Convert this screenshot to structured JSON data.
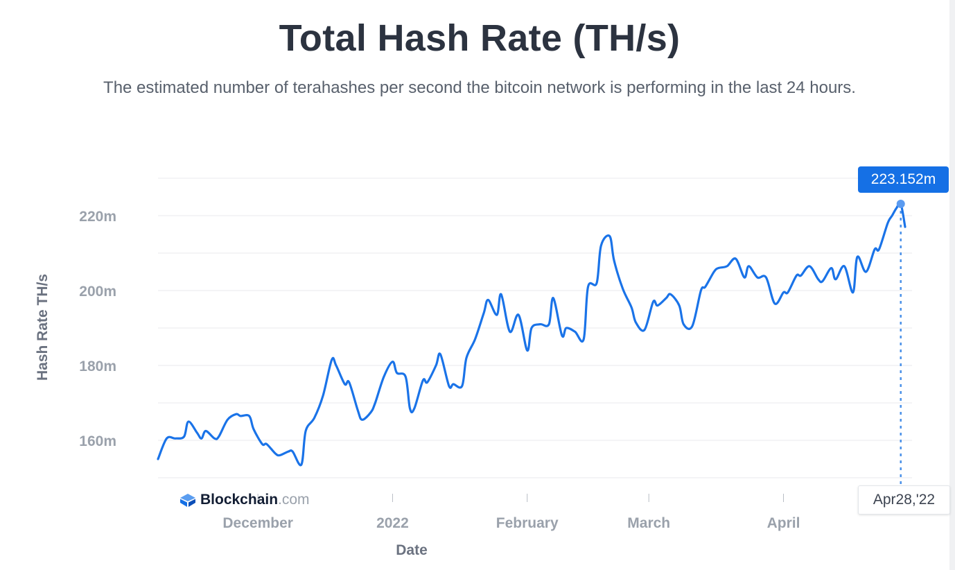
{
  "page": {
    "title": "Total Hash Rate (TH/s)",
    "subtitle": "The estimated number of terahashes per second the bitcoin network is performing in the last 24 hours."
  },
  "brand": {
    "name": "Blockchain",
    "tld": ".com",
    "icon": "blockchain-logo-icon",
    "color": "#1570e5"
  },
  "tooltip": {
    "value": "223.152m",
    "date": "Apr28,'22"
  },
  "colors": {
    "line": "#1a73e8",
    "tooltip": "#1570e5",
    "grid": "#e8eaee"
  },
  "chart_data": {
    "type": "line",
    "title": "Total Hash Rate (TH/s)",
    "ylabel": "Hash Rate TH/s",
    "xlabel": "Date",
    "ylim": [
      150,
      230
    ],
    "yticks": [
      160,
      180,
      200,
      220
    ],
    "ytick_labels": [
      "160m",
      "180m",
      "200m",
      "220m"
    ],
    "xticks": [
      {
        "date": "2021-12-01",
        "label": "December"
      },
      {
        "date": "2022-01-01",
        "label": "2022"
      },
      {
        "date": "2022-02-01",
        "label": "February"
      },
      {
        "date": "2022-03-01",
        "label": "March"
      },
      {
        "date": "2022-04-01",
        "label": "April"
      }
    ],
    "grid": true,
    "series": [
      {
        "x": [
          "2021-11-08",
          "2021-11-10",
          "2021-11-12",
          "2021-11-14",
          "2021-11-15",
          "2021-11-17",
          "2021-11-18",
          "2021-11-19",
          "2021-11-21",
          "2021-11-22",
          "2021-11-24",
          "2021-11-26",
          "2021-11-27",
          "2021-11-29",
          "2021-11-30",
          "2021-12-02",
          "2021-12-03",
          "2021-12-05",
          "2021-12-06",
          "2021-12-08",
          "2021-12-09",
          "2021-12-11",
          "2021-12-12",
          "2021-12-14",
          "2021-12-16",
          "2021-12-18",
          "2021-12-19",
          "2021-12-21",
          "2021-12-22",
          "2021-12-24",
          "2021-12-25",
          "2021-12-27",
          "2021-12-28",
          "2021-12-30",
          "2022-01-01",
          "2022-01-02",
          "2022-01-04",
          "2022-01-05",
          "2022-01-06",
          "2022-01-08",
          "2022-01-09",
          "2022-01-11",
          "2022-01-12",
          "2022-01-14",
          "2022-01-15",
          "2022-01-17",
          "2022-01-18",
          "2022-01-20",
          "2022-01-22",
          "2022-01-23",
          "2022-01-25",
          "2022-01-26",
          "2022-01-28",
          "2022-01-30",
          "2022-02-01",
          "2022-02-02",
          "2022-02-04",
          "2022-02-06",
          "2022-02-07",
          "2022-02-09",
          "2022-02-10",
          "2022-02-12",
          "2022-02-14",
          "2022-02-15",
          "2022-02-17",
          "2022-02-18",
          "2022-02-20",
          "2022-02-21",
          "2022-02-23",
          "2022-02-25",
          "2022-02-26",
          "2022-02-28",
          "2022-03-02",
          "2022-03-03",
          "2022-03-05",
          "2022-03-06",
          "2022-03-08",
          "2022-03-09",
          "2022-03-11",
          "2022-03-13",
          "2022-03-14",
          "2022-03-16",
          "2022-03-17",
          "2022-03-19",
          "2022-03-21",
          "2022-03-23",
          "2022-03-24",
          "2022-03-26",
          "2022-03-28",
          "2022-03-30",
          "2022-04-01",
          "2022-04-02",
          "2022-04-04",
          "2022-04-05",
          "2022-04-07",
          "2022-04-09",
          "2022-04-10",
          "2022-04-12",
          "2022-04-13",
          "2022-04-15",
          "2022-04-17",
          "2022-04-18",
          "2022-04-20",
          "2022-04-22",
          "2022-04-23",
          "2022-04-25",
          "2022-04-26",
          "2022-04-27",
          "2022-04-28",
          "2022-04-29"
        ],
        "values": [
          155,
          160.5,
          160.5,
          161,
          165,
          162,
          160.5,
          162.5,
          160.5,
          161,
          165.5,
          167,
          166.5,
          166.5,
          163,
          159,
          159,
          156.5,
          156,
          157,
          157,
          153.5,
          162.5,
          166,
          172,
          181.5,
          180,
          175,
          175.5,
          168,
          165.5,
          167.5,
          170,
          177,
          181,
          178,
          177,
          168.5,
          168.5,
          176,
          175.5,
          180,
          183,
          174.5,
          175,
          174.5,
          182,
          187,
          194,
          197.5,
          193.5,
          199,
          189,
          193.5,
          184,
          190,
          191,
          191,
          198,
          188,
          190,
          189,
          187,
          201,
          202,
          212,
          214.5,
          208,
          200.5,
          195.5,
          191.5,
          189.5,
          197,
          196,
          198,
          199,
          196,
          191,
          190.5,
          200,
          201,
          205,
          206,
          206.5,
          208.5,
          203.5,
          206.5,
          203.5,
          203.5,
          196.5,
          199.5,
          199.5,
          204,
          204,
          206.5,
          203,
          202.5,
          206,
          203,
          206.5,
          199.5,
          209,
          205,
          211,
          211,
          218,
          220,
          222,
          223.152,
          217
        ]
      }
    ]
  }
}
